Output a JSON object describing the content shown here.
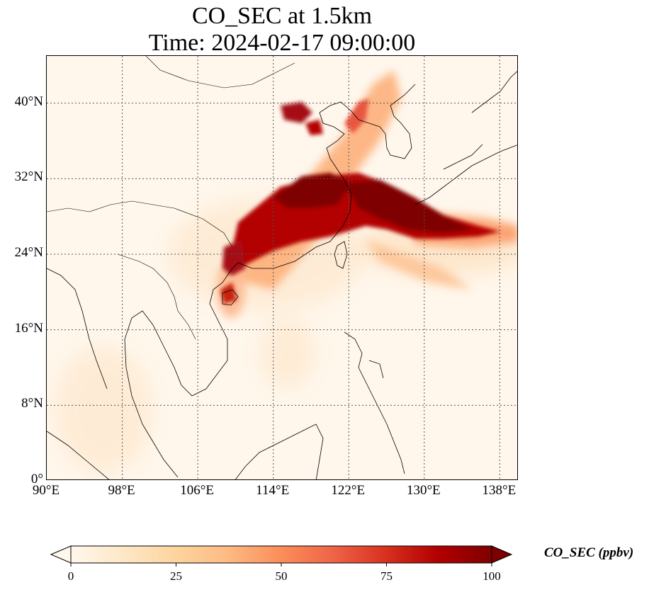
{
  "title": {
    "line1": "CO_SEC at 1.5km",
    "line2": "Time: 2024-02-17 09:00:00"
  },
  "map": {
    "extent": {
      "lon": [
        90,
        140
      ],
      "lat": [
        0,
        45
      ]
    },
    "lat_ticks": [
      {
        "value": 40,
        "label": "40°N"
      },
      {
        "value": 32,
        "label": "32°N"
      },
      {
        "value": 24,
        "label": "24°N"
      },
      {
        "value": 16,
        "label": "16°N"
      },
      {
        "value": 8,
        "label": "8°N"
      },
      {
        "value": 0,
        "label": "0°"
      }
    ],
    "lon_ticks": [
      {
        "value": 90,
        "label": "90°E"
      },
      {
        "value": 98,
        "label": "98°E"
      },
      {
        "value": 106,
        "label": "106°E"
      },
      {
        "value": 114,
        "label": "114°E"
      },
      {
        "value": 122,
        "label": "122°E"
      },
      {
        "value": 130,
        "label": "130°E"
      },
      {
        "value": 138,
        "label": "138°E"
      }
    ],
    "gridlines": true
  },
  "colorbar": {
    "label": "CO_SEC (ppbv)",
    "range": [
      0,
      100
    ],
    "extend": "both",
    "ticks": [
      {
        "value": 0,
        "label": "0"
      },
      {
        "value": 25,
        "label": "25"
      },
      {
        "value": 50,
        "label": "50"
      },
      {
        "value": 75,
        "label": "75"
      },
      {
        "value": 100,
        "label": "100"
      }
    ],
    "colormap": [
      "#fff7ec",
      "#fee8c8",
      "#fdd49e",
      "#fdbb84",
      "#fc8d59",
      "#ef6548",
      "#d7301f",
      "#b30000",
      "#7f0000"
    ]
  }
}
